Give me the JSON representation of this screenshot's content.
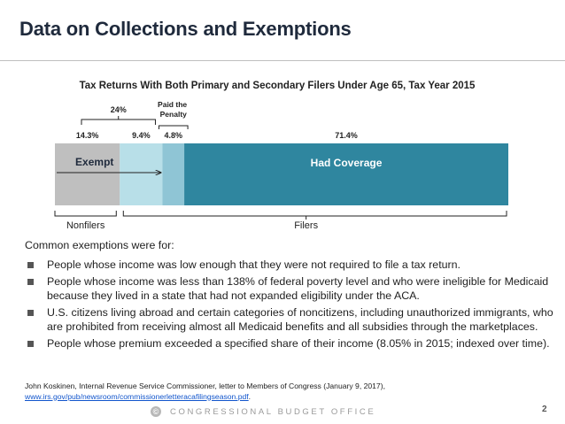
{
  "header": {
    "title": "Data on Collections and Exemptions"
  },
  "chart_data": {
    "type": "bar",
    "orientation": "horizontal-stacked",
    "title": "Tax Returns With Both Primary and Secondary Filers Under Age 65, Tax Year 2015",
    "segments": [
      {
        "label": "14.3%",
        "value": 14.3,
        "color": "#bfbfbf"
      },
      {
        "label": "9.4%",
        "value": 9.4,
        "color": "#b8dfe8"
      },
      {
        "label": "4.8%",
        "value": 4.8,
        "color": "#8fc5d5"
      },
      {
        "label": "71.4%",
        "value": 71.4,
        "color": "#2f869f"
      }
    ],
    "annotations": {
      "exempt_total": "24%",
      "paid_penalty": [
        "Paid the",
        "Penalty"
      ],
      "exempt_label": "Exempt",
      "coverage_label": "Had Coverage",
      "nonfilers": "Nonfilers",
      "filers": "Filers"
    }
  },
  "body": {
    "intro": "Common exemptions were for:",
    "bullets": [
      "People whose income was low enough that they were not required to file a tax return.",
      "People whose income was less than 138% of federal poverty level and who were ineligible for Medicaid because they lived in a state that had not expanded eligibility under the ACA.",
      "U.S. citizens living abroad and certain categories of noncitizens, including unauthorized immigrants, who are prohibited from receiving almost all Medicaid benefits and all subsidies through the marketplaces.",
      "People whose premium exceeded a specified share of their income (8.05% in 2015; indexed over time)."
    ]
  },
  "source": {
    "text": "John Koskinen, Internal Revenue Service Commissioner, letter to Members of Congress (January 9, 2017),",
    "link": "www.irs.gov/pub/newsroom/commissionerletteracafilingseason.pdf",
    "link_suffix": "."
  },
  "footer": {
    "logo_glyph": "©",
    "org": "CONGRESSIONAL BUDGET OFFICE",
    "page": "2"
  }
}
